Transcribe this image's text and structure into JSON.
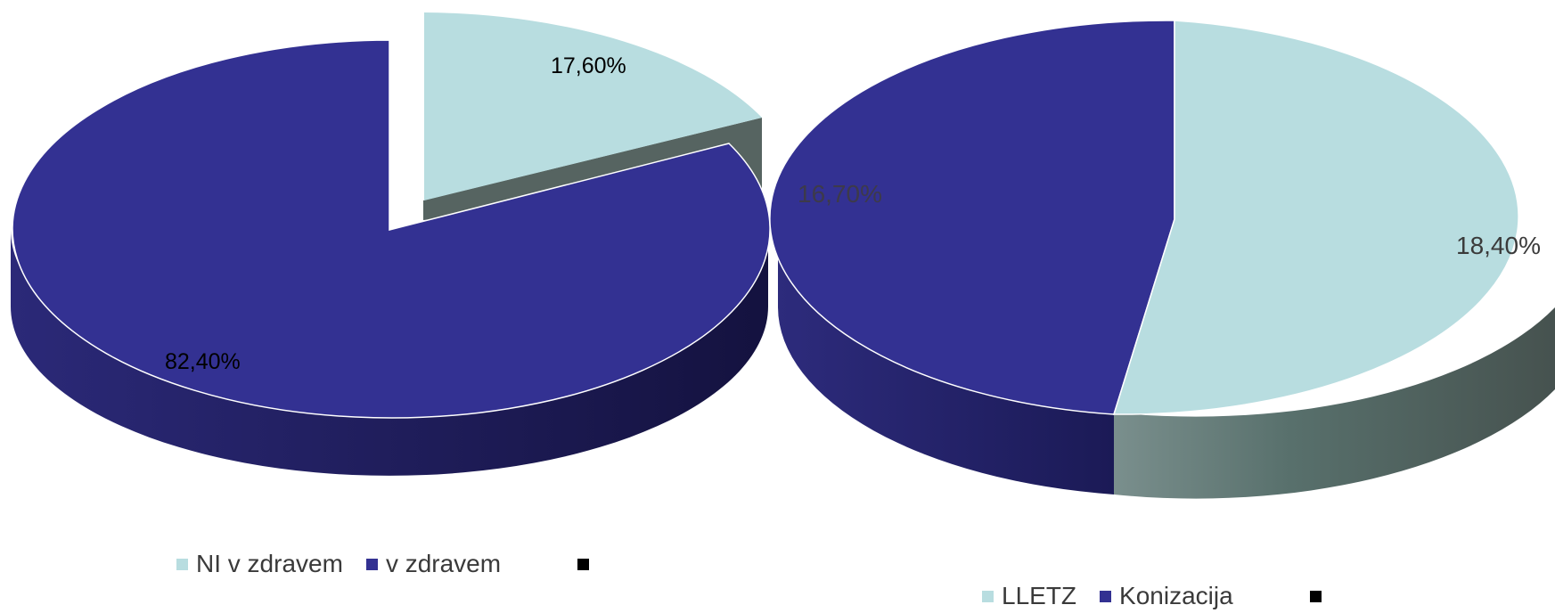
{
  "chart_data": [
    {
      "type": "pie",
      "slices": [
        {
          "label": "NI v zdravem",
          "value": 17.6,
          "display": "17,60%",
          "color": "#b8dde0",
          "side_color": "#4e5e5c",
          "exploded": true
        },
        {
          "label": "v zdravem",
          "value": 82.4,
          "display": "82,40%",
          "color": "#333192",
          "side_color": "#1d1b5a"
        }
      ],
      "legend": {
        "position": "bottom",
        "entries": [
          "NI v zdravem",
          "v zdravem"
        ]
      }
    },
    {
      "type": "pie",
      "slices": [
        {
          "label": "LLETZ",
          "value": 18.4,
          "display": "18,40%",
          "color": "#b8dde0",
          "side_color": "#4e5e5c"
        },
        {
          "label": "Konizacija",
          "value": 16.7,
          "display": "16,70%",
          "color": "#333192",
          "side_color": "#1d1b5a"
        }
      ],
      "legend": {
        "position": "bottom",
        "entries": [
          "LLETZ",
          "Konizacija"
        ]
      }
    }
  ]
}
